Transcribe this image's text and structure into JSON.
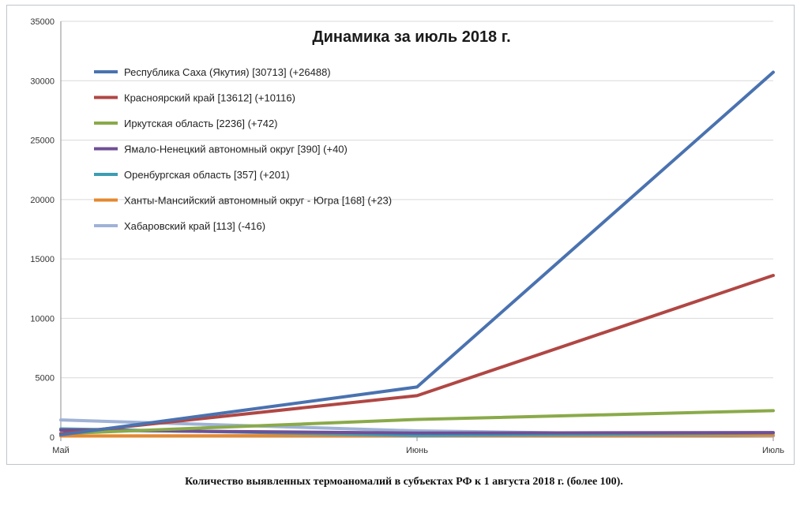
{
  "caption": "Количество выявленных термоаномалий в субъектах РФ к 1 августа 2018 г. (более 100).",
  "chart_data": {
    "type": "line",
    "title": "Динамика за июль 2018 г.",
    "categories": [
      "Май",
      "Июнь",
      "Июль"
    ],
    "ylim": [
      0,
      35000
    ],
    "yticks": [
      0,
      5000,
      10000,
      15000,
      20000,
      25000,
      30000,
      35000
    ],
    "grid": true,
    "legend_position": "top-left",
    "series": [
      {
        "name": "Республика Саха (Якутия) [30713] (+26488)",
        "color": "#4a72b0",
        "values": [
          200,
          4225,
          30713
        ]
      },
      {
        "name": "Красноярский край [13612] (+10116)",
        "color": "#b04744",
        "values": [
          300,
          3496,
          13612
        ]
      },
      {
        "name": "Иркутская область [2236] (+742)",
        "color": "#8aaa4a",
        "values": [
          300,
          1494,
          2236
        ]
      },
      {
        "name": "Ямало-Ненецкий автономный округ [390] (+40)",
        "color": "#6f4f96",
        "values": [
          600,
          350,
          390
        ]
      },
      {
        "name": "Оренбургская область [357] (+201)",
        "color": "#3d9db3",
        "values": [
          700,
          156,
          357
        ]
      },
      {
        "name": "Ханты-Мансийский автономный округ - Югра [168] (+23)",
        "color": "#e5882f",
        "values": [
          100,
          145,
          168
        ]
      },
      {
        "name": "Хабаровский край [113] (-416)",
        "color": "#9fb2d6",
        "values": [
          1450,
          529,
          113
        ]
      }
    ]
  }
}
